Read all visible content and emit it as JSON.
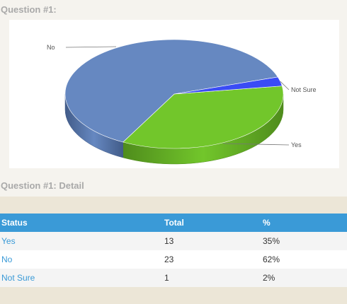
{
  "question": {
    "title": "Question #1:"
  },
  "detail": {
    "title": "Question #1: Detail",
    "columns": [
      "Status",
      "Total",
      "%"
    ],
    "rows": [
      {
        "status": "Yes",
        "total": "13",
        "percent": "35%"
      },
      {
        "status": "No",
        "total": "23",
        "percent": "62%"
      },
      {
        "status": "Not Sure",
        "total": "1",
        "percent": "2%"
      }
    ]
  },
  "colors": {
    "header": "#3a9ad7",
    "link": "#3a9ad7"
  },
  "chart_data": {
    "type": "pie",
    "style": "3d",
    "categories": [
      "Yes",
      "No",
      "Not Sure"
    ],
    "values": [
      13,
      23,
      1
    ],
    "colors": [
      "#72c62b",
      "#6688c1",
      "#3a4cf5"
    ],
    "side_colors": [
      "#4f8c1c",
      "#425c89",
      "#2a36b0"
    ],
    "labels": [
      "Yes",
      "No",
      "Not Sure"
    ],
    "legend": "none"
  }
}
